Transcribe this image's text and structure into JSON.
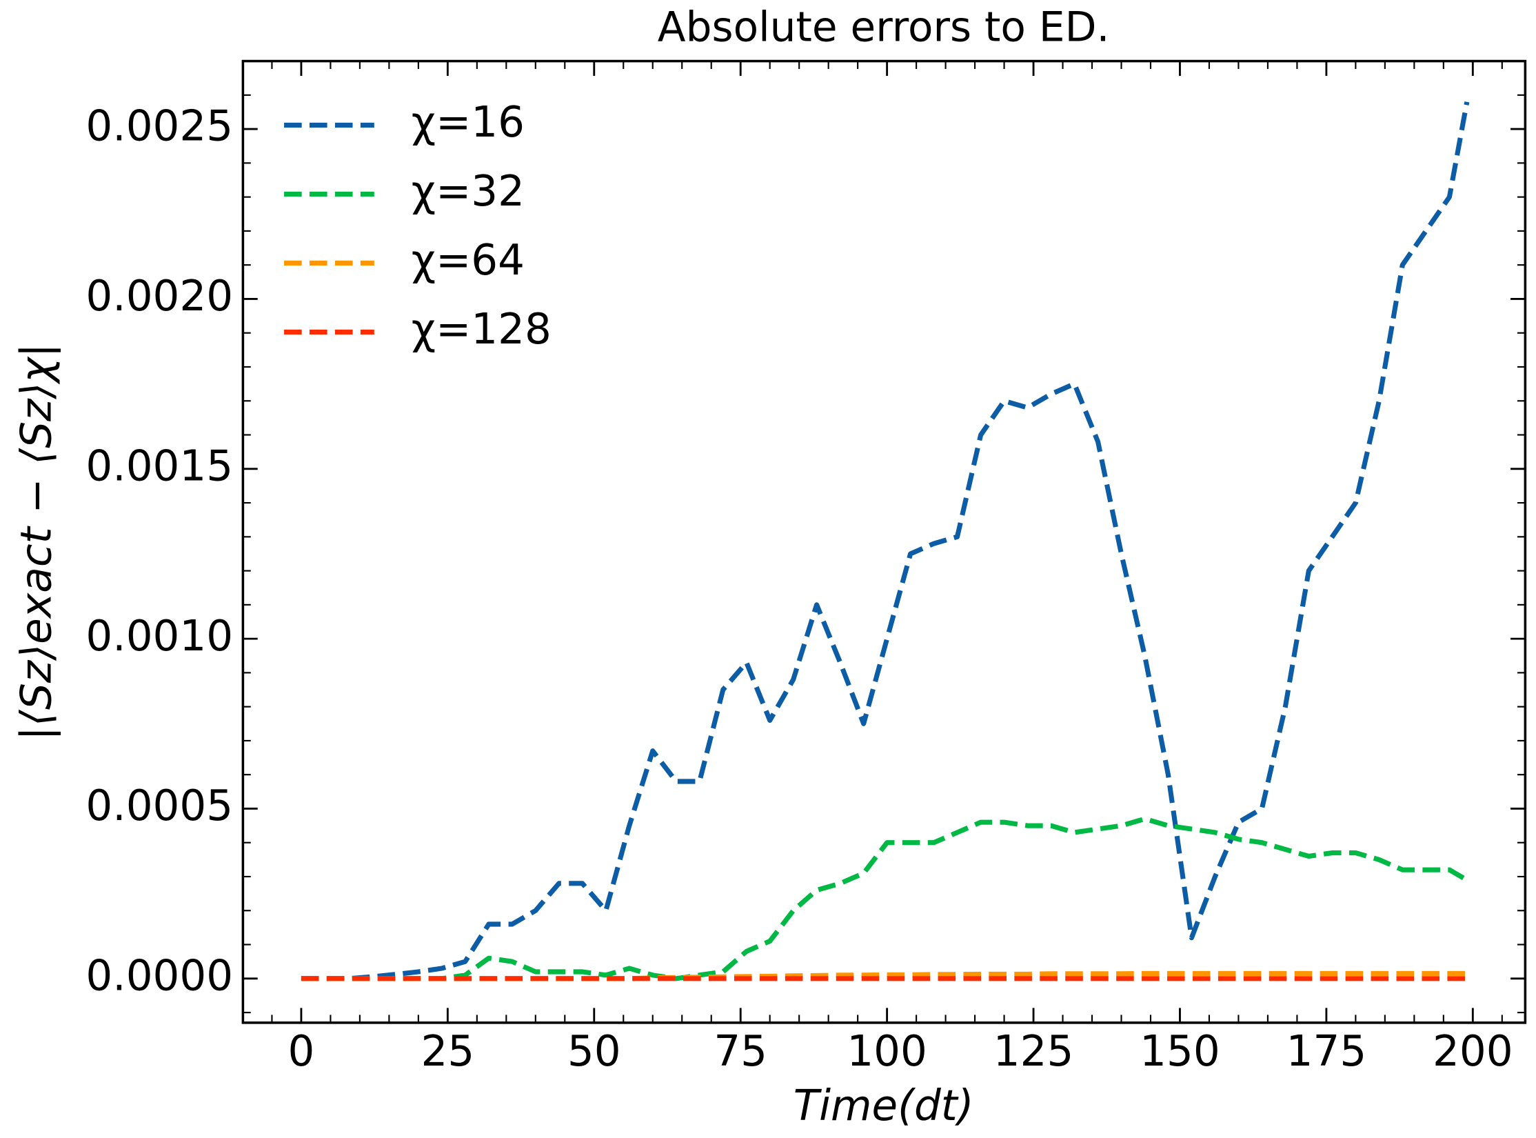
{
  "chart_data": {
    "type": "line",
    "title": "Absolute errors to ED.",
    "xlabel": "Time(dt)",
    "ylabel": "|⟨Sz⟩exact − ⟨Sz⟩χ|",
    "x": [
      0,
      4,
      8,
      12,
      16,
      20,
      24,
      28,
      32,
      36,
      40,
      44,
      48,
      52,
      56,
      60,
      64,
      68,
      72,
      76,
      80,
      84,
      88,
      92,
      96,
      100,
      104,
      108,
      112,
      116,
      120,
      124,
      128,
      132,
      136,
      140,
      144,
      148,
      152,
      156,
      160,
      164,
      168,
      172,
      176,
      180,
      184,
      188,
      192,
      196,
      199
    ],
    "series": [
      {
        "name": "χ=16",
        "color": "#0c5da5",
        "values": [
          0,
          0,
          0,
          5e-06,
          1.2e-05,
          2e-05,
          3e-05,
          5e-05,
          0.00016,
          0.00016,
          0.0002,
          0.00028,
          0.00028,
          0.0002,
          0.00045,
          0.00067,
          0.00058,
          0.00058,
          0.00085,
          0.00093,
          0.00076,
          0.00088,
          0.0011,
          0.00093,
          0.00075,
          0.001,
          0.00125,
          0.00128,
          0.0013,
          0.0016,
          0.0017,
          0.00168,
          0.00172,
          0.00175,
          0.00158,
          0.00125,
          0.00095,
          0.0006,
          0.00012,
          0.0003,
          0.00046,
          0.0005,
          0.0008,
          0.0012,
          0.0013,
          0.0014,
          0.0017,
          0.0021,
          0.0022,
          0.0023,
          0.00258
        ]
      },
      {
        "name": "χ=32",
        "color": "#00b945",
        "values": [
          0,
          0,
          0,
          0,
          0,
          0,
          0,
          1e-05,
          6e-05,
          5e-05,
          2e-05,
          2e-05,
          2e-05,
          1e-05,
          3e-05,
          1e-05,
          0,
          1e-05,
          2e-05,
          8e-05,
          0.00011,
          0.0002,
          0.00026,
          0.00028,
          0.00031,
          0.0004,
          0.0004,
          0.0004,
          0.00043,
          0.00046,
          0.00046,
          0.00045,
          0.00045,
          0.00043,
          0.00044,
          0.00045,
          0.00047,
          0.00045,
          0.00044,
          0.00043,
          0.00041,
          0.0004,
          0.00038,
          0.00036,
          0.00037,
          0.00037,
          0.00035,
          0.00032,
          0.00032,
          0.00032,
          0.00029
        ]
      },
      {
        "name": "χ=64",
        "color": "#ff9500",
        "values": [
          0,
          0,
          0,
          0,
          0,
          0,
          0,
          0,
          0,
          0,
          0,
          0,
          0,
          0,
          0,
          2e-06,
          3e-06,
          4e-06,
          5e-06,
          6e-06,
          7e-06,
          8e-06,
          9e-06,
          1e-05,
          1e-05,
          1.1e-05,
          1.1e-05,
          1.2e-05,
          1.2e-05,
          1.3e-05,
          1.3e-05,
          1.3e-05,
          1.4e-05,
          1.4e-05,
          1.4e-05,
          1.4e-05,
          1.5e-05,
          1.5e-05,
          1.5e-05,
          1.5e-05,
          1.5e-05,
          1.5e-05,
          1.5e-05,
          1.5e-05,
          1.5e-05,
          1.5e-05,
          1.5e-05,
          1.5e-05,
          1.5e-05,
          1.5e-05,
          1.5e-05
        ]
      },
      {
        "name": "χ=128",
        "color": "#ff2c00",
        "values": [
          0,
          0,
          0,
          0,
          0,
          0,
          0,
          0,
          0,
          0,
          0,
          0,
          0,
          0,
          0,
          0,
          0,
          0,
          0,
          0,
          0,
          0,
          0,
          0,
          0,
          0,
          0,
          0,
          0,
          0,
          0,
          0,
          0,
          0,
          0,
          0,
          0,
          0,
          0,
          0,
          0,
          0,
          0,
          0,
          0,
          0,
          0,
          0,
          0,
          0,
          0
        ]
      }
    ],
    "xlim": [
      -9.95,
      208.95
    ],
    "ylim": [
      -0.00013,
      0.0027
    ],
    "xticks": [
      0,
      25,
      50,
      75,
      100,
      125,
      150,
      175,
      200
    ],
    "xminorticks": [
      -5,
      5,
      10,
      15,
      20,
      30,
      35,
      40,
      45,
      55,
      60,
      65,
      70,
      80,
      85,
      90,
      95,
      105,
      110,
      115,
      120,
      130,
      135,
      140,
      145,
      155,
      160,
      165,
      170,
      180,
      185,
      190,
      195,
      205
    ],
    "yticks": [
      {
        "value": 0,
        "label": "0.0000"
      },
      {
        "value": 0.0005,
        "label": "0.0005"
      },
      {
        "value": 0.001,
        "label": "0.0010"
      },
      {
        "value": 0.0015,
        "label": "0.0015"
      },
      {
        "value": 0.002,
        "label": "0.0020"
      },
      {
        "value": 0.0025,
        "label": "0.0025"
      }
    ],
    "yminorticks": [
      -0.0001,
      0.0001,
      0.0002,
      0.0003,
      0.0004,
      0.0006,
      0.0007,
      0.0008,
      0.0009,
      0.0011,
      0.0012,
      0.0013,
      0.0014,
      0.0016,
      0.0017,
      0.0018,
      0.0019,
      0.0021,
      0.0022,
      0.0023,
      0.0024,
      0.0026
    ],
    "legend": "upper left",
    "dashed": true
  }
}
